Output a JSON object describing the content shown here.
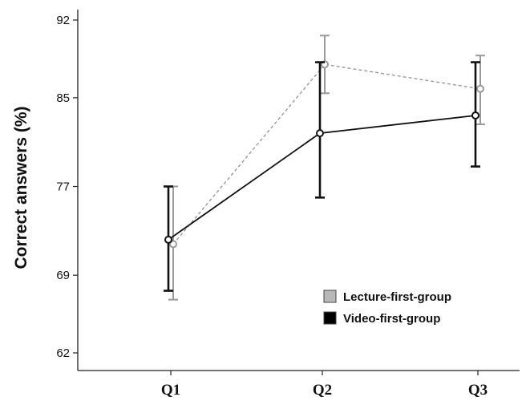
{
  "chart_data": {
    "type": "line",
    "ylabel": "Correct answers (%)",
    "xlabel": "",
    "categories": [
      "Q1",
      "Q2",
      "Q3"
    ],
    "y_ticks": [
      62,
      69,
      77,
      85,
      92
    ],
    "ylim": [
      62,
      92
    ],
    "grid": false,
    "legend_position": "bottom-right",
    "series": [
      {
        "name": "Lecture-first-group",
        "color": "#9a9a9a",
        "line_style": "dashed",
        "values": [
          71.8,
          88.0,
          85.8
        ],
        "err_low": [
          66.8,
          85.4,
          82.6
        ],
        "err_high": [
          77.0,
          90.6,
          88.8
        ]
      },
      {
        "name": "Video-first-group",
        "color": "#111111",
        "line_style": "solid",
        "values": [
          72.2,
          81.8,
          83.4
        ],
        "err_low": [
          67.6,
          76.0,
          78.8
        ],
        "err_high": [
          77.0,
          88.2,
          88.2
        ]
      }
    ]
  }
}
